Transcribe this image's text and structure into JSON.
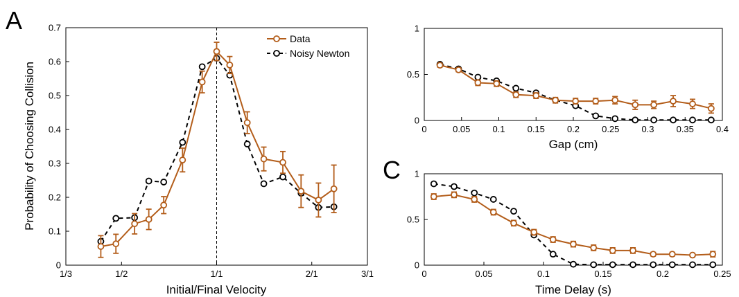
{
  "panel_labels": {
    "a": "A",
    "c": "C"
  },
  "colors": {
    "data": "#b35d1a",
    "model": "#000000"
  },
  "legend": {
    "data": "Data",
    "model": "Noisy Newton"
  },
  "chart_data": [
    {
      "id": "A",
      "type": "line",
      "xlabel": "Initial/Final Velocity",
      "ylabel": "Probability of Choosing Collision",
      "x_scale": "log",
      "xlim": [
        0.3333,
        3
      ],
      "ylim": [
        0,
        0.7
      ],
      "x_ticks": [
        {
          "v": 0.3333,
          "label": "1/3"
        },
        {
          "v": 0.5,
          "label": "1/2"
        },
        {
          "v": 1,
          "label": "1/1"
        },
        {
          "v": 2,
          "label": "2/1"
        },
        {
          "v": 3,
          "label": "3/1"
        }
      ],
      "y_ticks": [
        "0",
        "0.1",
        "0.2",
        "0.3",
        "0.4",
        "0.5",
        "0.6",
        "0.7"
      ],
      "reference_line_x": 1,
      "legend_position": "top-right",
      "series": [
        {
          "name": "Data",
          "role": "data",
          "x": [
            0.43,
            0.48,
            0.55,
            0.61,
            0.68,
            0.78,
            0.9,
            1.0,
            1.1,
            1.25,
            1.41,
            1.62,
            1.85,
            2.1,
            2.35
          ],
          "y": [
            0.055,
            0.063,
            0.122,
            0.135,
            0.177,
            0.31,
            0.54,
            0.63,
            0.59,
            0.42,
            0.313,
            0.303,
            0.218,
            0.192,
            0.225
          ],
          "err": [
            0.032,
            0.028,
            0.03,
            0.03,
            0.025,
            0.035,
            0.032,
            0.027,
            0.025,
            0.032,
            0.035,
            0.032,
            0.048,
            0.05,
            0.07
          ]
        },
        {
          "name": "Noisy Newton",
          "role": "model",
          "x": [
            0.43,
            0.48,
            0.55,
            0.61,
            0.68,
            0.78,
            0.9,
            1.0,
            1.1,
            1.25,
            1.41,
            1.62,
            1.85,
            2.1,
            2.35
          ],
          "y": [
            0.07,
            0.138,
            0.14,
            0.248,
            0.245,
            0.362,
            0.585,
            0.61,
            0.56,
            0.357,
            0.24,
            0.26,
            0.212,
            0.17,
            0.172
          ]
        }
      ]
    },
    {
      "id": "B",
      "type": "line",
      "xlabel": "Gap (cm)",
      "ylabel": "",
      "xlim": [
        0,
        0.4
      ],
      "ylim": [
        0,
        1
      ],
      "x_ticks": [
        "0",
        "0.05",
        "0.1",
        "0.15",
        "0.2",
        "0.25",
        "0.3",
        "0.35",
        "0.4"
      ],
      "y_ticks": [
        "0",
        "0.5",
        "1"
      ],
      "series": [
        {
          "name": "Data",
          "role": "data",
          "x": [
            0.021,
            0.046,
            0.072,
            0.097,
            0.123,
            0.15,
            0.176,
            0.203,
            0.23,
            0.256,
            0.283,
            0.308,
            0.334,
            0.36,
            0.385
          ],
          "y": [
            0.6,
            0.55,
            0.41,
            0.4,
            0.28,
            0.27,
            0.22,
            0.21,
            0.21,
            0.22,
            0.17,
            0.17,
            0.21,
            0.18,
            0.13
          ],
          "err": [
            0.02,
            0.02,
            0.03,
            0.03,
            0.03,
            0.03,
            0.03,
            0.03,
            0.03,
            0.04,
            0.05,
            0.04,
            0.06,
            0.05,
            0.05
          ]
        },
        {
          "name": "Noisy Newton",
          "role": "model",
          "x": [
            0.021,
            0.046,
            0.072,
            0.097,
            0.123,
            0.15,
            0.176,
            0.203,
            0.23,
            0.256,
            0.283,
            0.308,
            0.334,
            0.36,
            0.385
          ],
          "y": [
            0.61,
            0.56,
            0.47,
            0.43,
            0.35,
            0.3,
            0.22,
            0.16,
            0.05,
            0.02,
            0.005,
            0.005,
            0.005,
            0.005,
            0.005
          ]
        }
      ]
    },
    {
      "id": "C",
      "type": "line",
      "xlabel": "Time Delay (s)",
      "ylabel": "",
      "xlim": [
        0,
        0.25
      ],
      "ylim": [
        0,
        1
      ],
      "x_ticks": [
        "0",
        "0.05",
        "0.1",
        "0.15",
        "0.2",
        "0.25"
      ],
      "y_ticks": [
        "0",
        "0.5",
        "1"
      ],
      "series": [
        {
          "name": "Data",
          "role": "data",
          "x": [
            0.008,
            0.025,
            0.042,
            0.058,
            0.075,
            0.092,
            0.108,
            0.125,
            0.142,
            0.158,
            0.175,
            0.192,
            0.208,
            0.225,
            0.242
          ],
          "y": [
            0.75,
            0.77,
            0.72,
            0.58,
            0.46,
            0.36,
            0.28,
            0.23,
            0.19,
            0.16,
            0.16,
            0.12,
            0.12,
            0.11,
            0.12
          ],
          "err": [
            0.03,
            0.03,
            0.03,
            0.03,
            0.03,
            0.03,
            0.03,
            0.03,
            0.03,
            0.03,
            0.03,
            0.02,
            0.02,
            0.02,
            0.03
          ]
        },
        {
          "name": "Noisy Newton",
          "role": "model",
          "x": [
            0.008,
            0.025,
            0.042,
            0.058,
            0.075,
            0.092,
            0.108,
            0.125,
            0.142,
            0.158,
            0.175,
            0.192,
            0.208,
            0.225,
            0.242
          ],
          "y": [
            0.89,
            0.86,
            0.79,
            0.72,
            0.59,
            0.33,
            0.12,
            0.01,
            0.005,
            0.005,
            0.005,
            0.005,
            0.005,
            0.005,
            0.005
          ]
        }
      ]
    }
  ]
}
